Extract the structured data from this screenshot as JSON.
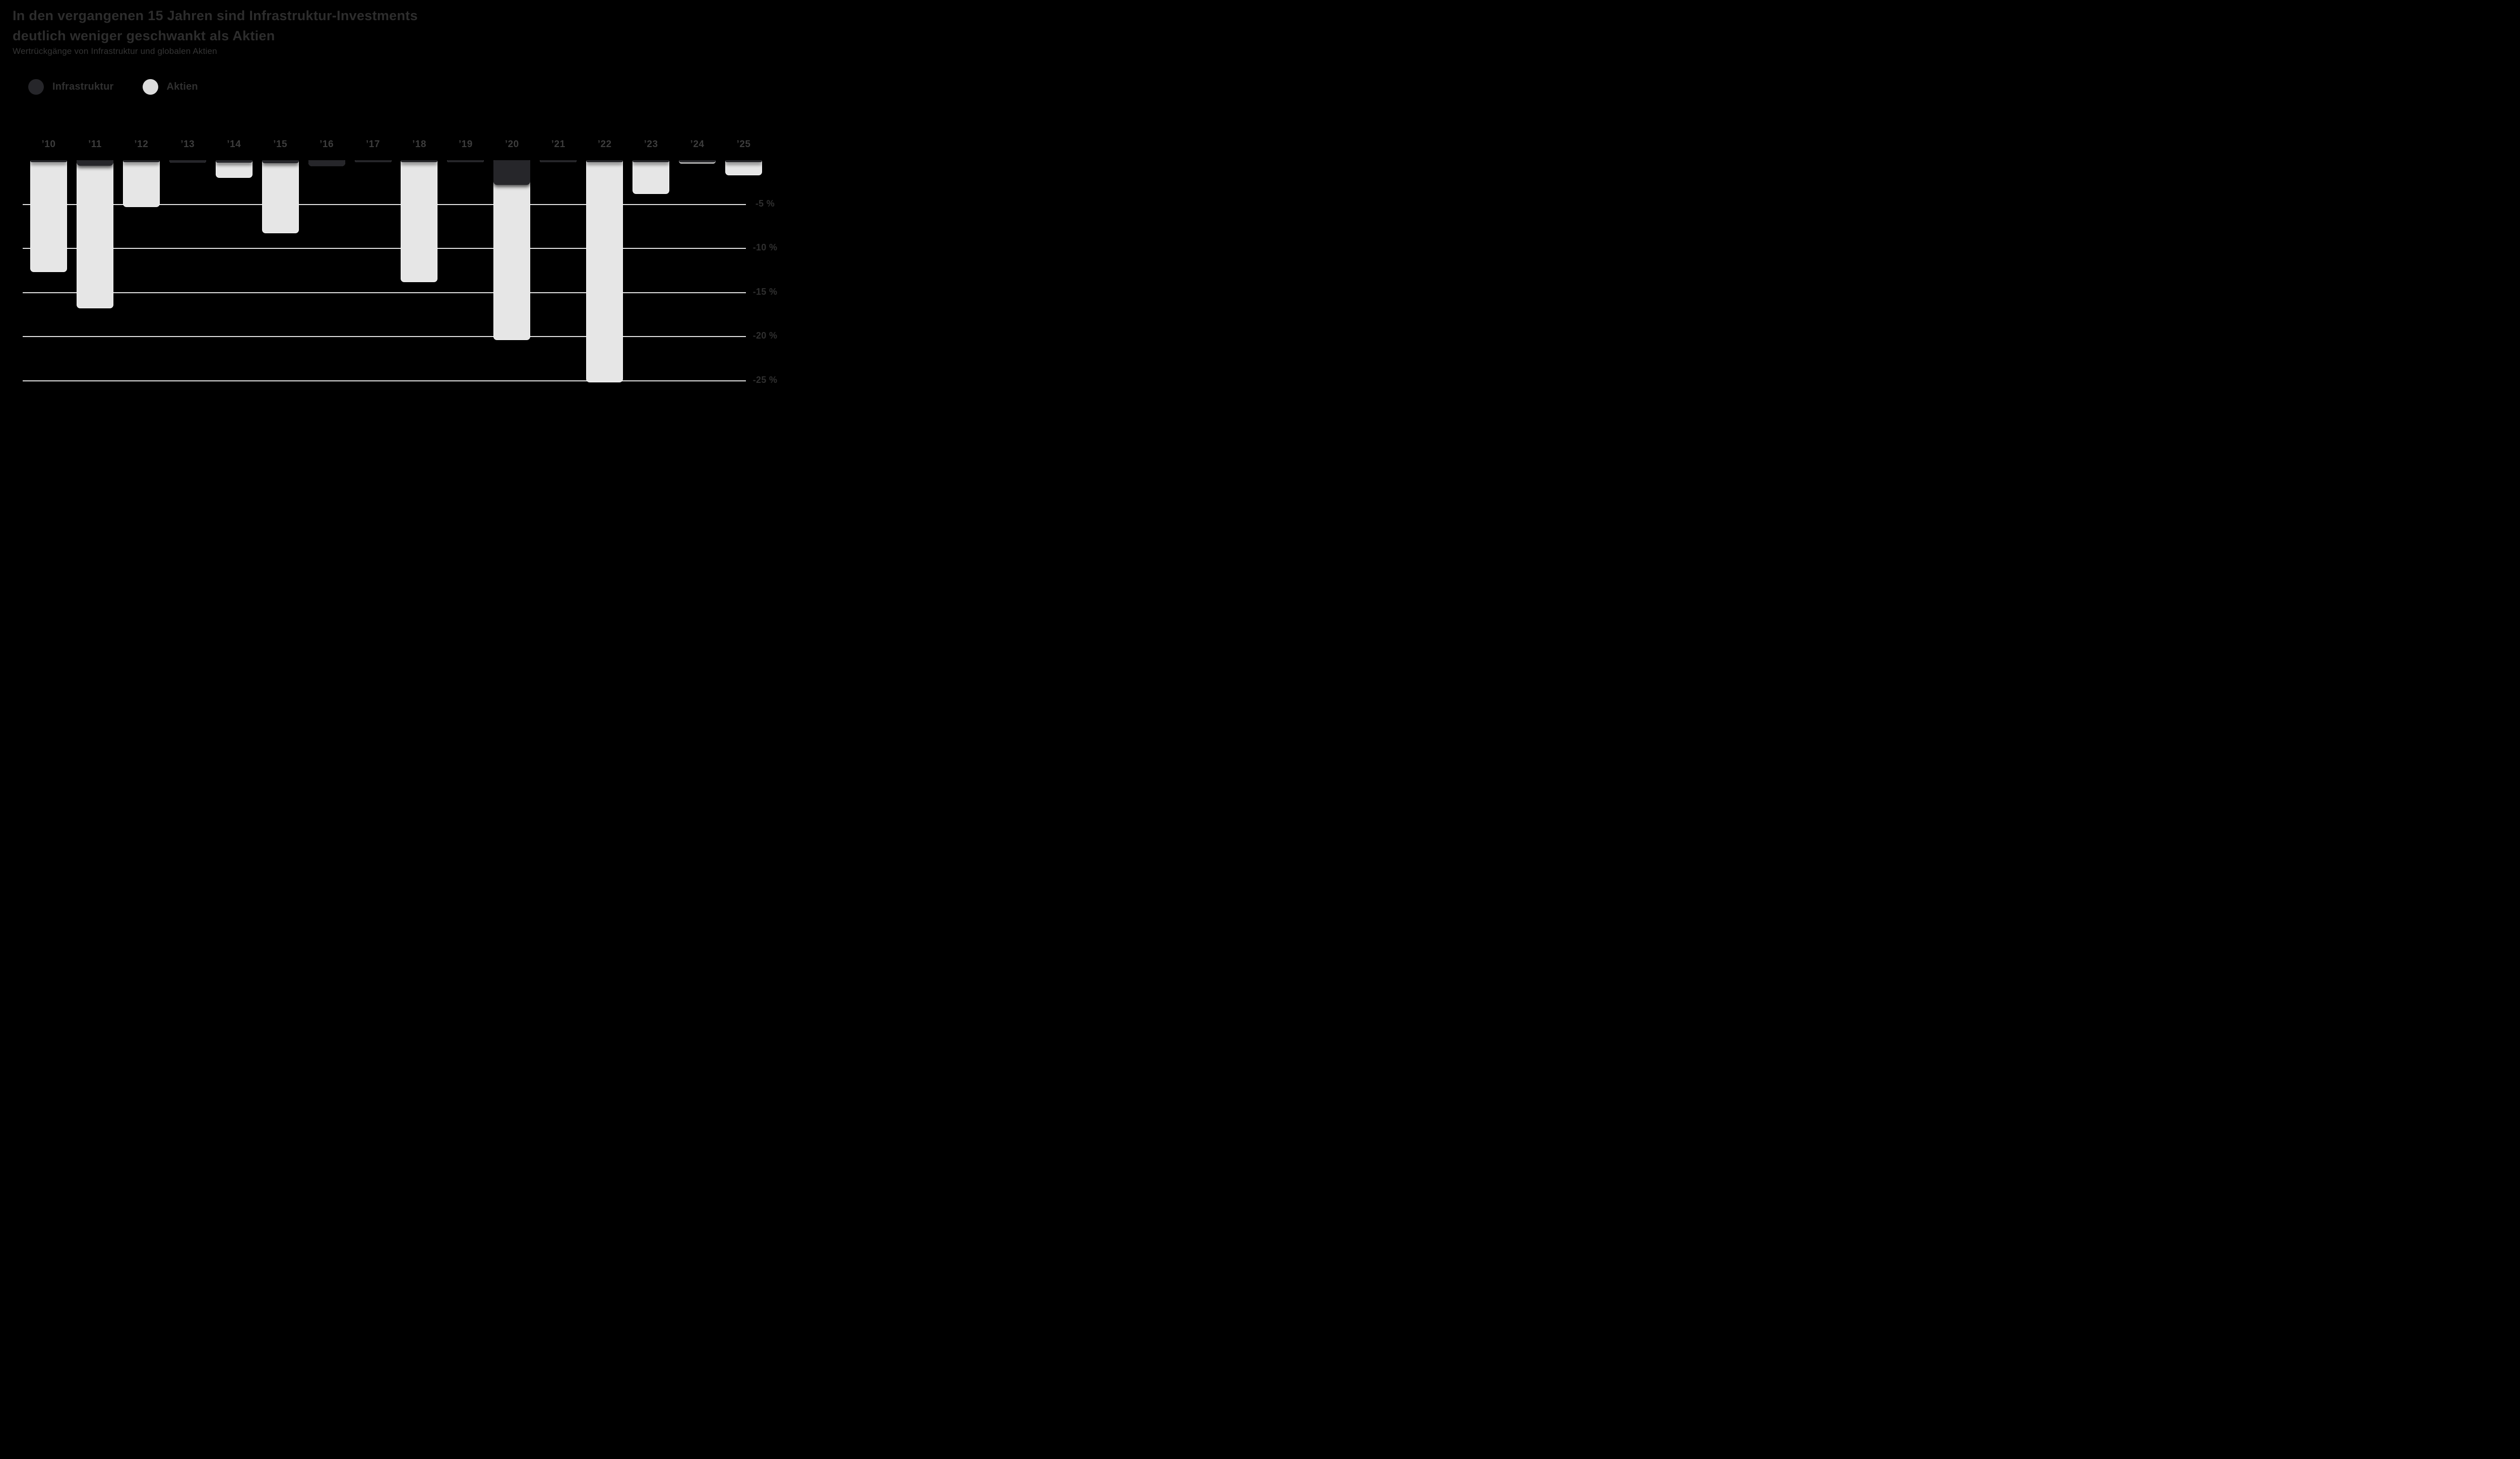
{
  "title": {
    "line1": "In den vergangenen 15 Jahren sind Infrastruktur-Investments",
    "line2": "deutlich weniger geschwankt als Aktien"
  },
  "subtitle": "Wertrückgänge von Infrastruktur und globalen Aktien",
  "legend": {
    "items": [
      {
        "label": "Infrastruktur",
        "color": "#26262a"
      },
      {
        "label": "Aktien",
        "color": "#dcdcdc"
      }
    ]
  },
  "colors": {
    "background": "#000000",
    "bar_light_fill": "#e6e6e6",
    "bar_light_stroke": "#fafafa",
    "bar_dark_fill": "#26262a",
    "gridline": "#e4e4e4",
    "title_text": "#2d2d2d",
    "subtitle_text": "#343434",
    "year_label_text": "#3d3d3d",
    "tick_label_text": "#303030"
  },
  "chart_data": {
    "type": "bar",
    "title": "In den vergangenen 15 Jahren sind Infrastruktur-Investments deutlich weniger geschwankt als Aktien",
    "subtitle": "Wertrückgänge von Infrastruktur und globalen Aktien",
    "unit": "%",
    "categories": [
      "’10",
      "’11",
      "’12",
      "’13",
      "’14",
      "’15",
      "’16",
      "’17",
      "’18",
      "’19",
      "’20",
      "’21",
      "’22",
      "’23",
      "’24",
      "’25"
    ],
    "series": [
      {
        "name": "Infrastruktur",
        "values": [
          -0.2,
          -0.6,
          -0.2,
          -0.3,
          -0.3,
          -0.35,
          -0.7,
          -0.2,
          -0.25,
          -0.2,
          -2.8,
          -0.2,
          -0.2,
          -0.2,
          -0.2,
          -0.2
        ]
      },
      {
        "name": "Aktien",
        "values": [
          -12.7,
          -16.8,
          -5.3,
          -0.3,
          -2.0,
          -8.3,
          -0.7,
          -0.2,
          -13.8,
          -0.2,
          -20.4,
          -0.2,
          -25.2,
          -3.8,
          -0.4,
          -1.7
        ]
      }
    ],
    "yticks": [
      {
        "value": -5,
        "label": "-5 %"
      },
      {
        "value": -10,
        "label": "-10 %"
      },
      {
        "value": -15,
        "label": "-15 %"
      },
      {
        "value": -20,
        "label": "-20 %"
      },
      {
        "value": -25,
        "label": "-25 %"
      }
    ],
    "ylim": [
      -27,
      0
    ],
    "grid": true,
    "legend_position": "top-left",
    "xlabel": "",
    "ylabel": ""
  }
}
